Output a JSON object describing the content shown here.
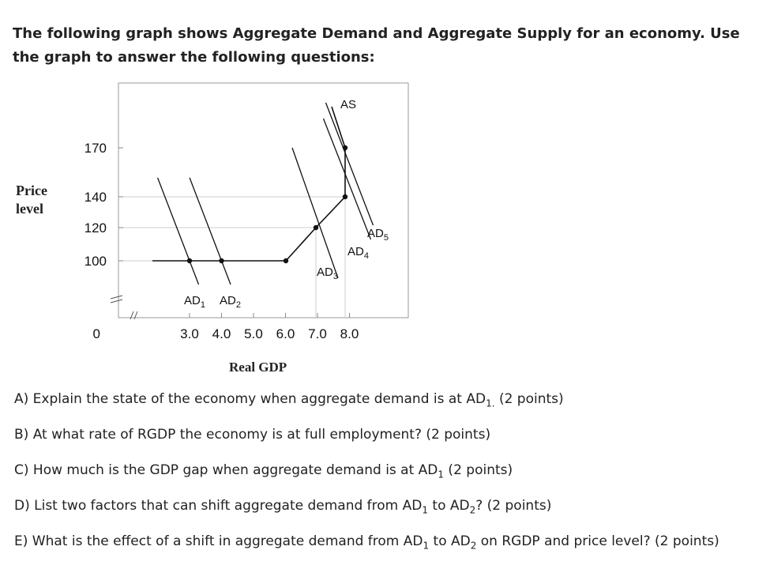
{
  "intro": "The following graph shows Aggregate Demand and Aggregate Supply for an economy.  Use the graph to answer the following questions:",
  "chart_data": {
    "type": "line",
    "xlabel": "Real GDP",
    "ylabel": "Price level",
    "x_ticks": [
      "0",
      "3.0",
      "4.0",
      "5.0",
      "6.0",
      "7.0",
      "8.0"
    ],
    "y_ticks": [
      "0",
      "100",
      "120",
      "140",
      "170"
    ],
    "axis_breaks": true,
    "as_curve": {
      "name": "AS",
      "points": [
        [
          1.5,
          100
        ],
        [
          3.0,
          100
        ],
        [
          4.0,
          100
        ],
        [
          6.0,
          100
        ],
        [
          7.0,
          120
        ],
        [
          8.0,
          140
        ],
        [
          8.0,
          170
        ],
        [
          8.0,
          190
        ]
      ]
    },
    "ad_curves": [
      {
        "name": "AD",
        "sub": "1",
        "intersect": [
          3.0,
          100
        ]
      },
      {
        "name": "AD",
        "sub": "2",
        "intersect": [
          4.0,
          100
        ]
      },
      {
        "name": "AD",
        "sub": "3",
        "intersect": [
          7.0,
          120
        ]
      },
      {
        "name": "AD",
        "sub": "4",
        "intersect": [
          8.0,
          140
        ]
      },
      {
        "name": "AD",
        "sub": "5",
        "intersect": [
          8.0,
          170
        ]
      }
    ],
    "points": [
      [
        3.0,
        100
      ],
      [
        4.0,
        100
      ],
      [
        6.0,
        100
      ],
      [
        7.0,
        120
      ],
      [
        8.0,
        140
      ],
      [
        8.0,
        170
      ]
    ]
  },
  "questions": [
    {
      "text": "A) Explain the state of the economy when aggregate demand is at AD",
      "sub": "1.",
      "rest": " (2 points)"
    },
    {
      "text": "B) At what rate of RGDP the economy is at full employment? (2 points)",
      "sub": "",
      "rest": ""
    },
    {
      "text": "C) How much is the GDP gap when aggregate demand is at AD",
      "sub": "1",
      "rest": " (2 points)"
    },
    {
      "text": "D) List two factors that can shift aggregate demand from AD",
      "sub": "1",
      "rest": " to AD",
      "sub2": "2",
      "rest2": "? (2 points)"
    },
    {
      "text": "E) What is the effect of a shift in aggregate demand from AD",
      "sub": "1",
      "rest": " to AD",
      "sub2": "2",
      "rest2": " on RGDP and price level? (2 points)"
    }
  ]
}
